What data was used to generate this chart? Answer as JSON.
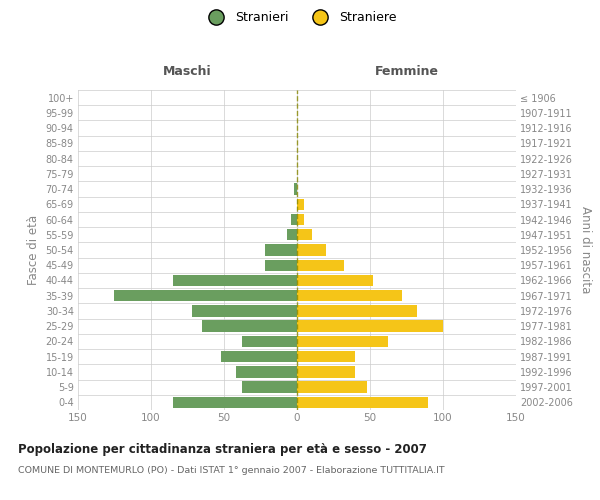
{
  "age_groups": [
    "100+",
    "95-99",
    "90-94",
    "85-89",
    "80-84",
    "75-79",
    "70-74",
    "65-69",
    "60-64",
    "55-59",
    "50-54",
    "45-49",
    "40-44",
    "35-39",
    "30-34",
    "25-29",
    "20-24",
    "15-19",
    "10-14",
    "5-9",
    "0-4"
  ],
  "birth_years": [
    "≤ 1906",
    "1907-1911",
    "1912-1916",
    "1917-1921",
    "1922-1926",
    "1927-1931",
    "1932-1936",
    "1937-1941",
    "1942-1946",
    "1947-1951",
    "1952-1956",
    "1957-1961",
    "1962-1966",
    "1967-1971",
    "1972-1976",
    "1977-1981",
    "1982-1986",
    "1987-1991",
    "1992-1996",
    "1997-2001",
    "2002-2006"
  ],
  "males": [
    0,
    0,
    0,
    0,
    0,
    0,
    2,
    0,
    4,
    7,
    22,
    22,
    85,
    125,
    72,
    65,
    38,
    52,
    42,
    38,
    85
  ],
  "females": [
    0,
    0,
    0,
    0,
    0,
    0,
    0,
    5,
    5,
    10,
    20,
    32,
    52,
    72,
    82,
    100,
    62,
    40,
    40,
    48,
    90
  ],
  "male_color": "#6a9e5f",
  "female_color": "#f5c518",
  "background_color": "#ffffff",
  "grid_color": "#cccccc",
  "title": "Popolazione per cittadinanza straniera per età e sesso - 2007",
  "subtitle": "COMUNE DI MONTEMURLO (PO) - Dati ISTAT 1° gennaio 2007 - Elaborazione TUTTITALIA.IT",
  "xlabel_left": "Maschi",
  "xlabel_right": "Femmine",
  "ylabel_left": "Fasce di età",
  "ylabel_right": "Anni di nascita",
  "legend_male": "Stranieri",
  "legend_female": "Straniere",
  "xlim": 150,
  "bar_height": 0.75
}
